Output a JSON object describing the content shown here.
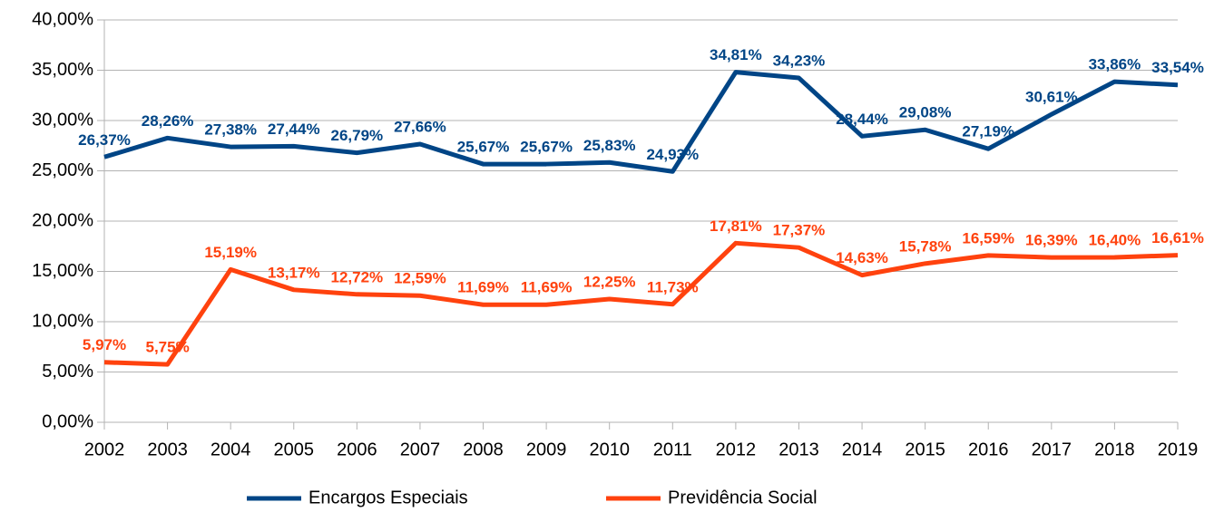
{
  "chart_data": {
    "type": "line",
    "categories": [
      "2002",
      "2003",
      "2004",
      "2005",
      "2006",
      "2007",
      "2008",
      "2009",
      "2010",
      "2011",
      "2012",
      "2013",
      "2014",
      "2015",
      "2016",
      "2017",
      "2018",
      "2019"
    ],
    "series": [
      {
        "name": "Encargos Especiais",
        "color": "#004586",
        "values": [
          26.37,
          28.26,
          27.38,
          27.44,
          26.79,
          27.66,
          25.67,
          25.67,
          25.83,
          24.93,
          34.81,
          34.23,
          28.44,
          29.08,
          27.19,
          30.61,
          33.86,
          33.54
        ],
        "value_labels": [
          "26,37%",
          "28,26%",
          "27,38%",
          "27,44%",
          "26,79%",
          "27,66%",
          "25,67%",
          "25,67%",
          "25,83%",
          "24,93%",
          "34,81%",
          "34,23%",
          "28,44%",
          "29,08%",
          "27,19%",
          "30,61%",
          "33,86%",
          "33,54%"
        ]
      },
      {
        "name": "Previdência Social",
        "color": "#ff420e",
        "values": [
          5.97,
          5.75,
          15.19,
          13.17,
          12.72,
          12.59,
          11.69,
          11.69,
          12.25,
          11.73,
          17.81,
          17.37,
          14.63,
          15.78,
          16.59,
          16.39,
          16.4,
          16.61
        ],
        "value_labels": [
          "5,97%",
          "5,75%",
          "15,19%",
          "13,17%",
          "12,72%",
          "12,59%",
          "11,69%",
          "11,69%",
          "12,25%",
          "11,73%",
          "17,81%",
          "17,37%",
          "14,63%",
          "15,78%",
          "16,59%",
          "16,39%",
          "16,40%",
          "16,61%"
        ]
      }
    ],
    "ylim": [
      0,
      40
    ],
    "yticks": [
      {
        "value": 0,
        "label": "0,00%"
      },
      {
        "value": 5,
        "label": "5,00%"
      },
      {
        "value": 10,
        "label": "10,00%"
      },
      {
        "value": 15,
        "label": "15,00%"
      },
      {
        "value": 20,
        "label": "20,00%"
      },
      {
        "value": 25,
        "label": "25,00%"
      },
      {
        "value": 30,
        "label": "30,00%"
      },
      {
        "value": 35,
        "label": "35,00%"
      },
      {
        "value": 40,
        "label": "40,00%"
      }
    ],
    "grid": true,
    "legend": "bottom"
  }
}
